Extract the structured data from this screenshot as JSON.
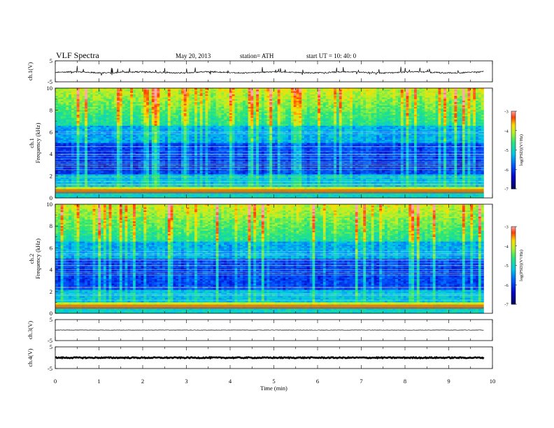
{
  "header": {
    "title": "VLF  Spectra",
    "date": "May 20, 2013",
    "station": "station= ATH",
    "start": "start  UT  =    10: 40:  0"
  },
  "chart_data": [
    {
      "type": "line",
      "name": "ch1-waveform",
      "ylabel": "ch.1(V)",
      "ylim": [
        -5,
        5
      ],
      "yticks": [
        "5",
        "-5"
      ],
      "x_range_min": [
        0,
        9.8
      ],
      "baseline_level": -0.5
    },
    {
      "type": "heatmap",
      "name": "ch1-spectrogram",
      "ylabel": [
        "ch.1",
        "Frequency  (kHz)"
      ],
      "ylim": [
        0,
        10
      ],
      "yticks": [
        "0",
        "2",
        "4",
        "6",
        "8",
        "10"
      ],
      "x_range_min": [
        0,
        9.8
      ],
      "colorbar": {
        "label": "log(PSD)(V²/Hz)",
        "range": [
          -7,
          -3
        ],
        "ticks": [
          "-3",
          "-4",
          "-5",
          "-6",
          "-7"
        ]
      }
    },
    {
      "type": "heatmap",
      "name": "ch2-spectrogram",
      "ylabel": [
        "ch.2",
        "Frequency  (kHz)"
      ],
      "ylim": [
        0,
        10
      ],
      "yticks": [
        "0",
        "2",
        "4",
        "6",
        "8",
        "10"
      ],
      "x_range_min": [
        0,
        9.8
      ],
      "colorbar": {
        "label": "log(PSD)(V²/Hz)",
        "range": [
          -7,
          -3
        ],
        "ticks": [
          "-3",
          "-4",
          "-5",
          "-6",
          "-7"
        ]
      }
    },
    {
      "type": "line",
      "name": "ch3-waveform",
      "ylabel": "ch.3(V)",
      "ylim": [
        -5,
        5
      ],
      "yticks": [
        "5",
        "-5"
      ],
      "x_range_min": [
        0,
        9.8
      ],
      "baseline_level": 0
    },
    {
      "type": "line",
      "name": "ch4-waveform",
      "ylabel": "ch.4(V)",
      "ylim": [
        -5,
        5
      ],
      "yticks": [
        "5",
        "-5"
      ],
      "x_range_min": [
        0,
        9.8
      ],
      "baseline_level": 0
    }
  ],
  "xaxis": {
    "label": "Time  (min)",
    "range": [
      0,
      10
    ],
    "ticks": [
      "0",
      "1",
      "2",
      "3",
      "4",
      "5",
      "6",
      "7",
      "8",
      "9",
      "10"
    ]
  }
}
